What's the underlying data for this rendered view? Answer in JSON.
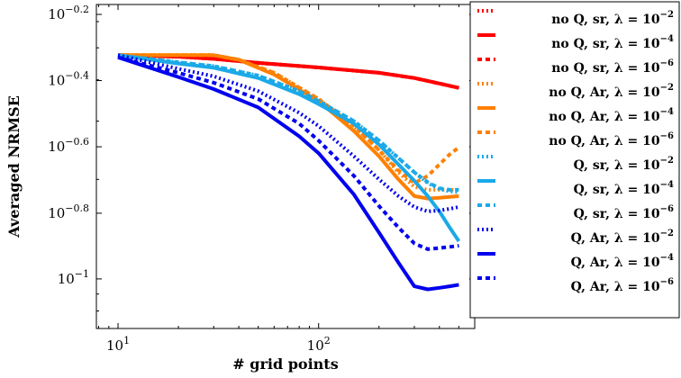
{
  "chart_data": {
    "type": "line",
    "xlabel": "# grid points",
    "ylabel": "Averaged NRMSE",
    "xscale": "log",
    "yscale": "log",
    "xlim": [
      7.8,
      600
    ],
    "ylim": [
      0.0708,
      0.676
    ],
    "xticks": [
      {
        "value": 10,
        "base": "10",
        "exp": "1"
      },
      {
        "value": 100,
        "base": "10",
        "exp": "2"
      }
    ],
    "yticks": [
      {
        "value": 0.631,
        "base": "10",
        "exp": "−0.2"
      },
      {
        "value": 0.398,
        "base": "10",
        "exp": "−0.4"
      },
      {
        "value": 0.251,
        "base": "10",
        "exp": "−0.6"
      },
      {
        "value": 0.158,
        "base": "10",
        "exp": "−0.8"
      },
      {
        "value": 0.1,
        "base": "10",
        "exp": "−1"
      }
    ],
    "grid": false,
    "legend_position": "right",
    "series": [
      {
        "name": "no Q, sr, λ = 10^-2",
        "color": "#ff0000",
        "style": "dotted",
        "x": [
          10,
          20,
          30,
          50,
          100,
          200,
          300,
          400,
          500
        ],
        "y": [
          0.475,
          0.47,
          0.463,
          0.45,
          0.436,
          0.42,
          0.405,
          0.39,
          0.378
        ]
      },
      {
        "name": "no Q, sr, λ = 10^-4",
        "color": "#ff0000",
        "style": "solid",
        "x": [
          10,
          20,
          30,
          50,
          100,
          200,
          300,
          400,
          500
        ],
        "y": [
          0.475,
          0.47,
          0.463,
          0.45,
          0.436,
          0.42,
          0.405,
          0.39,
          0.378
        ]
      },
      {
        "name": "no Q, sr, λ = 10^-6",
        "color": "#ff0000",
        "style": "dashed",
        "x": [
          10,
          20,
          30,
          50,
          100,
          200,
          300,
          400,
          500
        ],
        "y": [
          0.475,
          0.47,
          0.463,
          0.45,
          0.436,
          0.42,
          0.405,
          0.39,
          0.378
        ]
      },
      {
        "name": "no Q, Ar, λ = 10^-2",
        "color": "#ff8000",
        "style": "dotted",
        "x": [
          10,
          20,
          30,
          40,
          60,
          100,
          150,
          200,
          250,
          300,
          350,
          400,
          450,
          500
        ],
        "y": [
          0.475,
          0.475,
          0.475,
          0.46,
          0.42,
          0.35,
          0.29,
          0.245,
          0.21,
          0.19,
          0.186,
          0.186,
          0.186,
          0.186
        ]
      },
      {
        "name": "no Q, Ar, λ = 10^-4",
        "color": "#ff8000",
        "style": "solid",
        "x": [
          10,
          20,
          30,
          40,
          60,
          100,
          150,
          200,
          250,
          300,
          350,
          400,
          450,
          500
        ],
        "y": [
          0.475,
          0.475,
          0.475,
          0.46,
          0.415,
          0.345,
          0.28,
          0.235,
          0.2,
          0.178,
          0.175,
          0.176,
          0.177,
          0.178
        ]
      },
      {
        "name": "no Q, Ar, λ = 10^-6",
        "color": "#ff8000",
        "style": "dashed",
        "x": [
          10,
          20,
          30,
          40,
          60,
          100,
          150,
          200,
          250,
          300,
          350,
          400,
          450,
          500
        ],
        "y": [
          0.475,
          0.475,
          0.475,
          0.46,
          0.42,
          0.35,
          0.29,
          0.245,
          0.213,
          0.195,
          0.205,
          0.222,
          0.238,
          0.25
        ]
      },
      {
        "name": "Q, sr, λ = 10^-2",
        "color": "#1ba9e8",
        "style": "dotted",
        "x": [
          10,
          20,
          30,
          50,
          80,
          100,
          150,
          200,
          250,
          300,
          350,
          400,
          450,
          500
        ],
        "y": [
          0.475,
          0.452,
          0.44,
          0.412,
          0.37,
          0.345,
          0.3,
          0.262,
          0.232,
          0.21,
          0.195,
          0.187,
          0.184,
          0.183
        ]
      },
      {
        "name": "Q, sr, λ = 10^-4",
        "color": "#1ba9e8",
        "style": "solid",
        "x": [
          10,
          20,
          30,
          50,
          80,
          100,
          150,
          200,
          250,
          300,
          350,
          400,
          450,
          500
        ],
        "y": [
          0.475,
          0.448,
          0.435,
          0.405,
          0.362,
          0.338,
          0.295,
          0.255,
          0.222,
          0.198,
          0.178,
          0.16,
          0.143,
          0.13
        ]
      },
      {
        "name": "Q, sr, λ = 10^-6",
        "color": "#1ba9e8",
        "style": "dashed",
        "x": [
          10,
          20,
          30,
          50,
          80,
          100,
          150,
          200,
          250,
          300,
          350,
          400,
          450,
          500
        ],
        "y": [
          0.475,
          0.452,
          0.44,
          0.412,
          0.37,
          0.345,
          0.3,
          0.262,
          0.232,
          0.21,
          0.196,
          0.188,
          0.186,
          0.186
        ]
      },
      {
        "name": "Q, Ar, λ = 10^-2",
        "color": "#0000ee",
        "style": "dotted",
        "x": [
          10,
          20,
          30,
          50,
          80,
          100,
          150,
          200,
          250,
          300,
          350,
          400,
          450,
          500
        ],
        "y": [
          0.475,
          0.432,
          0.41,
          0.37,
          0.318,
          0.29,
          0.235,
          0.2,
          0.178,
          0.165,
          0.16,
          0.161,
          0.163,
          0.165
        ]
      },
      {
        "name": "Q, Ar, λ = 10^-4",
        "color": "#0000ee",
        "style": "solid",
        "x": [
          10,
          20,
          30,
          50,
          80,
          100,
          150,
          200,
          250,
          300,
          350,
          400,
          450,
          500
        ],
        "y": [
          0.468,
          0.408,
          0.375,
          0.33,
          0.27,
          0.24,
          0.18,
          0.138,
          0.112,
          0.095,
          0.093,
          0.094,
          0.095,
          0.096
        ]
      },
      {
        "name": "Q, Ar, λ = 10^-6",
        "color": "#0000ee",
        "style": "dashed",
        "x": [
          10,
          20,
          30,
          50,
          80,
          100,
          150,
          200,
          250,
          300,
          350,
          400,
          450,
          500
        ],
        "y": [
          0.468,
          0.42,
          0.392,
          0.35,
          0.295,
          0.262,
          0.205,
          0.166,
          0.143,
          0.128,
          0.123,
          0.124,
          0.125,
          0.126
        ]
      }
    ]
  }
}
